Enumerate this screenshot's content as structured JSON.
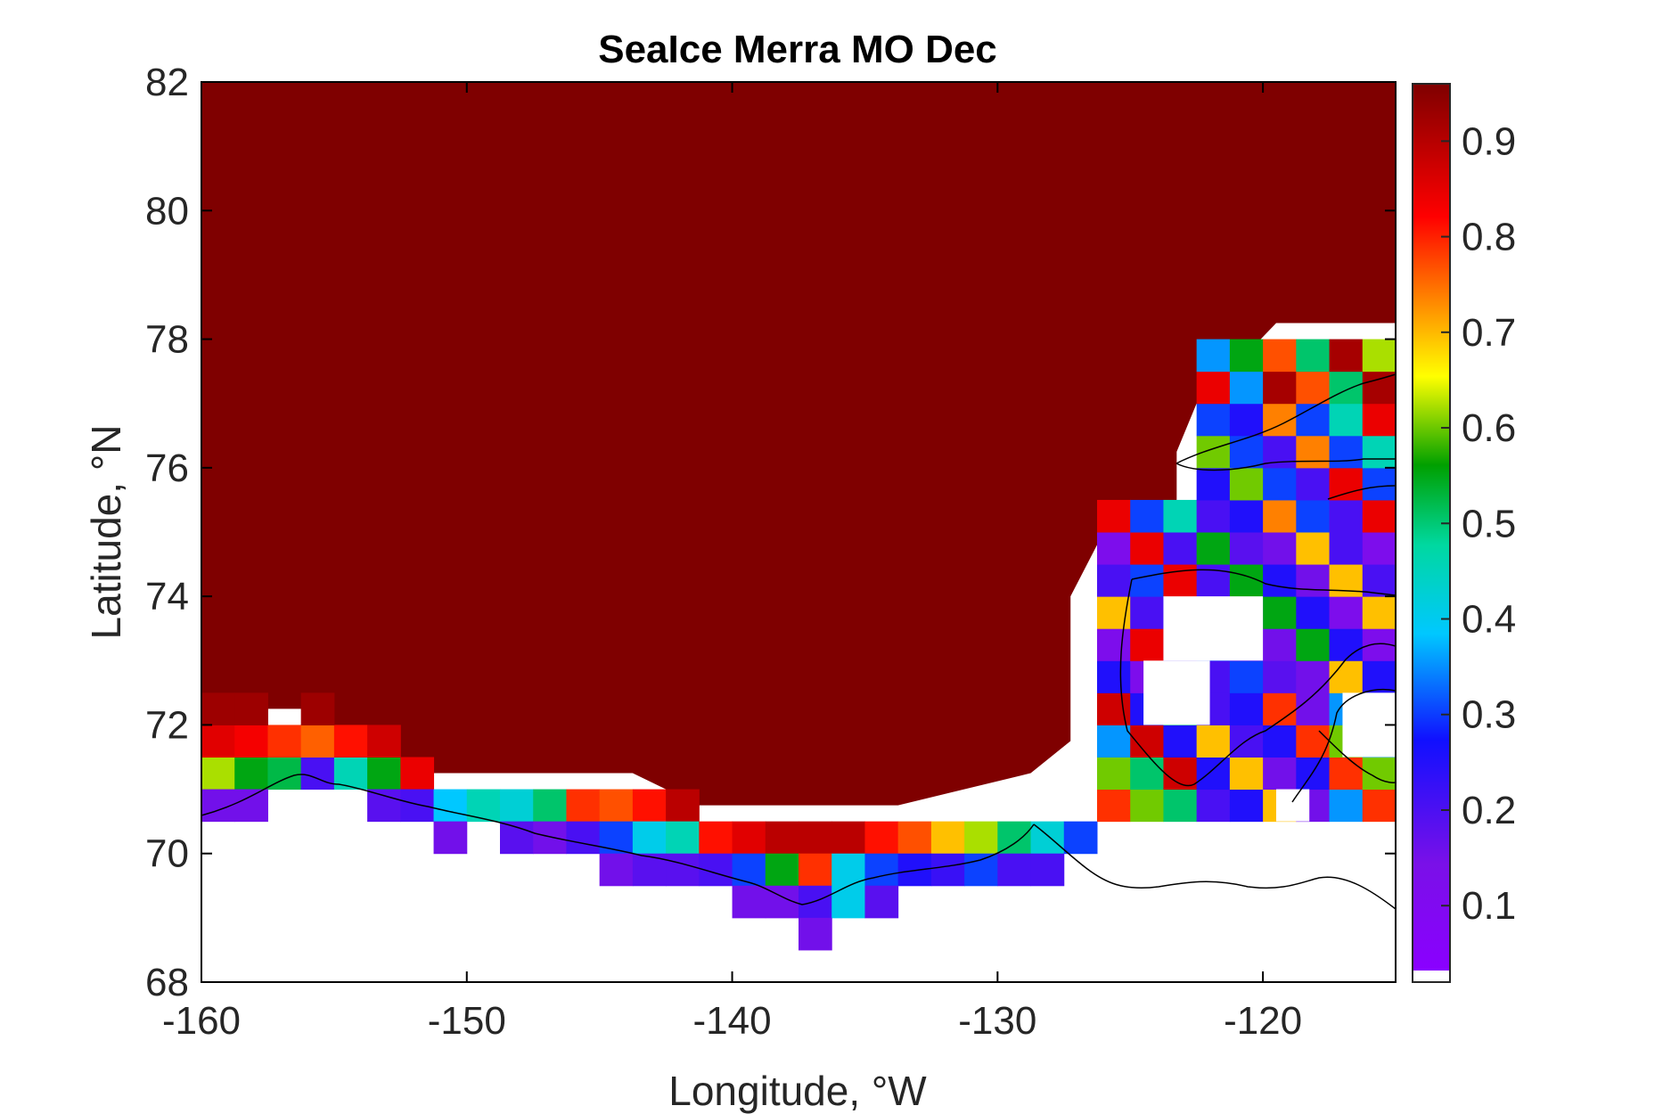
{
  "chart_data": {
    "type": "heatmap",
    "title": "SeaIce Merra MO Dec",
    "xlabel": "Longitude, °W",
    "ylabel": "Latitude, °N",
    "xlim": [
      -160,
      -115
    ],
    "ylim": [
      68,
      82
    ],
    "x_ticks": [
      -160,
      -150,
      -140,
      -130,
      -120
    ],
    "y_ticks": [
      68,
      70,
      72,
      74,
      76,
      78,
      80,
      82
    ],
    "colorbar": {
      "ticks": [
        0.1,
        0.2,
        0.3,
        0.4,
        0.5,
        0.6,
        0.7,
        0.8,
        0.9
      ],
      "range": [
        0.02,
        0.96
      ],
      "colormap": "jet-like (purple-blue-cyan-green-yellow-orange-red-darkred)",
      "min_color": "#ffffff",
      "max_color": "#7f0000"
    },
    "cell_size_deg": [
      1.25,
      0.5
    ],
    "fill_value": 0.96,
    "description_values": "Sea-ice fraction per grid cell; nearly all ocean north of ~71N is ~0.96; coastal band and Canadian Archipelago show lower values; white = missing/land",
    "cells": [
      {
        "lon": -160,
        "lat": 71.0,
        "v": 0.62
      },
      {
        "lon": -158.75,
        "lat": 71.0,
        "v": 0.55
      },
      {
        "lon": -157.5,
        "lat": 71.0,
        "v": 0.52
      },
      {
        "lon": -156.25,
        "lat": 71.0,
        "v": 0.2
      },
      {
        "lon": -155,
        "lat": 71.0,
        "v": 0.45
      },
      {
        "lon": -153.75,
        "lat": 71.0,
        "v": 0.55
      },
      {
        "lon": -152.5,
        "lat": 71.0,
        "v": 0.85
      },
      {
        "lon": -160,
        "lat": 71.5,
        "v": 0.86
      },
      {
        "lon": -158.75,
        "lat": 71.5,
        "v": 0.84
      },
      {
        "lon": -157.5,
        "lat": 71.5,
        "v": 0.8
      },
      {
        "lon": -156.25,
        "lat": 71.5,
        "v": 0.77
      },
      {
        "lon": -155,
        "lat": 71.5,
        "v": 0.82
      },
      {
        "lon": -153.75,
        "lat": 71.5,
        "v": 0.88
      },
      {
        "lon": -160,
        "lat": 72.0,
        "v": 0.93
      },
      {
        "lon": -158.75,
        "lat": 72.0,
        "v": 0.93
      },
      {
        "lon": -156.25,
        "lat": 72.0,
        "v": 0.93
      },
      {
        "lon": -160,
        "lat": 70.5,
        "v": 0.15
      },
      {
        "lon": -158.75,
        "lat": 70.5,
        "v": 0.15
      },
      {
        "lon": -153.75,
        "lat": 70.5,
        "v": 0.18
      },
      {
        "lon": -152.5,
        "lat": 70.5,
        "v": 0.2
      },
      {
        "lon": -151.25,
        "lat": 70.5,
        "v": 0.38
      },
      {
        "lon": -150,
        "lat": 70.5,
        "v": 0.45
      },
      {
        "lon": -148.75,
        "lat": 70.5,
        "v": 0.42
      },
      {
        "lon": -147.5,
        "lat": 70.5,
        "v": 0.5
      },
      {
        "lon": -146.25,
        "lat": 70.5,
        "v": 0.8
      },
      {
        "lon": -145,
        "lat": 70.5,
        "v": 0.78
      },
      {
        "lon": -143.75,
        "lat": 70.5,
        "v": 0.82
      },
      {
        "lon": -142.5,
        "lat": 70.5,
        "v": 0.9
      },
      {
        "lon": -151.25,
        "lat": 70.0,
        "v": 0.15
      },
      {
        "lon": -148.75,
        "lat": 70.0,
        "v": 0.18
      },
      {
        "lon": -147.5,
        "lat": 70.0,
        "v": 0.15
      },
      {
        "lon": -146.25,
        "lat": 70.0,
        "v": 0.2
      },
      {
        "lon": -145,
        "lat": 70.0,
        "v": 0.3
      },
      {
        "lon": -143.75,
        "lat": 70.0,
        "v": 0.4
      },
      {
        "lon": -142.5,
        "lat": 70.0,
        "v": 0.45
      },
      {
        "lon": -141.25,
        "lat": 70.0,
        "v": 0.82
      },
      {
        "lon": -140,
        "lat": 70.0,
        "v": 0.86
      },
      {
        "lon": -138.75,
        "lat": 70.0,
        "v": 0.9
      },
      {
        "lon": -137.5,
        "lat": 70.0,
        "v": 0.9
      },
      {
        "lon": -136.25,
        "lat": 70.0,
        "v": 0.9
      },
      {
        "lon": -135,
        "lat": 70.0,
        "v": 0.82
      },
      {
        "lon": -133.75,
        "lat": 70.0,
        "v": 0.78
      },
      {
        "lon": -132.5,
        "lat": 70.0,
        "v": 0.7
      },
      {
        "lon": -131.25,
        "lat": 70.0,
        "v": 0.62
      },
      {
        "lon": -130,
        "lat": 70.0,
        "v": 0.5
      },
      {
        "lon": -128.75,
        "lat": 70.0,
        "v": 0.42
      },
      {
        "lon": -127.5,
        "lat": 70.0,
        "v": 0.3
      },
      {
        "lon": -145,
        "lat": 69.5,
        "v": 0.15
      },
      {
        "lon": -143.75,
        "lat": 69.5,
        "v": 0.18
      },
      {
        "lon": -142.5,
        "lat": 69.5,
        "v": 0.18
      },
      {
        "lon": -141.25,
        "lat": 69.5,
        "v": 0.2
      },
      {
        "lon": -140,
        "lat": 69.5,
        "v": 0.3
      },
      {
        "lon": -138.75,
        "lat": 69.5,
        "v": 0.55
      },
      {
        "lon": -137.5,
        "lat": 69.5,
        "v": 0.8
      },
      {
        "lon": -136.25,
        "lat": 69.5,
        "v": 0.4
      },
      {
        "lon": -135,
        "lat": 69.5,
        "v": 0.3
      },
      {
        "lon": -133.75,
        "lat": 69.5,
        "v": 0.25
      },
      {
        "lon": -132.5,
        "lat": 69.5,
        "v": 0.22
      },
      {
        "lon": -131.25,
        "lat": 69.5,
        "v": 0.3
      },
      {
        "lon": -130,
        "lat": 69.5,
        "v": 0.2
      },
      {
        "lon": -128.75,
        "lat": 69.5,
        "v": 0.2
      },
      {
        "lon": -140,
        "lat": 69.0,
        "v": 0.15
      },
      {
        "lon": -138.75,
        "lat": 69.0,
        "v": 0.15
      },
      {
        "lon": -137.5,
        "lat": 69.0,
        "v": 0.2
      },
      {
        "lon": -136.25,
        "lat": 69.0,
        "v": 0.4
      },
      {
        "lon": -135,
        "lat": 69.0,
        "v": 0.18
      },
      {
        "lon": -137.5,
        "lat": 68.5,
        "v": 0.15
      }
    ]
  }
}
